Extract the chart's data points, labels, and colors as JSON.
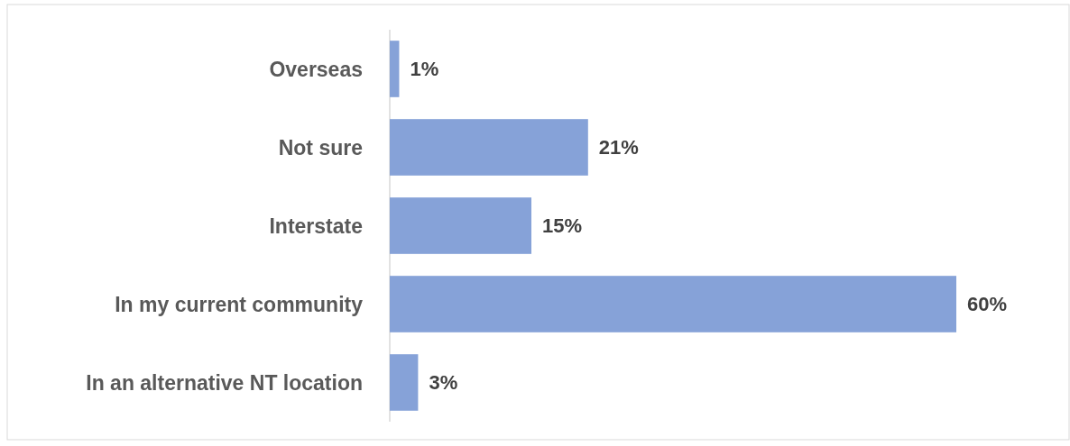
{
  "chart_data": {
    "type": "bar",
    "orientation": "horizontal",
    "categories": [
      "Overseas",
      "Not sure",
      "Interstate",
      "In my current community",
      "In an alternative NT location"
    ],
    "values": [
      1,
      21,
      15,
      60,
      3
    ],
    "value_labels": [
      "1%",
      "21%",
      "15%",
      "60%",
      "3%"
    ],
    "color": "#86a2d8"
  }
}
